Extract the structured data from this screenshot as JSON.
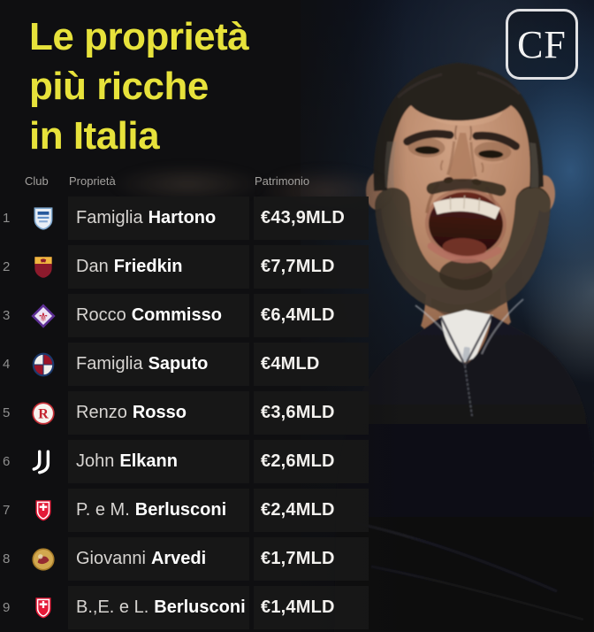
{
  "title": {
    "lines": [
      "Le proprietà",
      "più ricche",
      "in Italia"
    ],
    "color": "#e7e23b"
  },
  "brand": {
    "logo_text": "CF"
  },
  "table": {
    "headers": {
      "club": "Club",
      "owner": "Proprietà",
      "wealth": "Patrimonio"
    },
    "rows": [
      {
        "rank": "1",
        "club_icon": "como-badge-icon",
        "owner_first": "Famiglia",
        "owner_last": "Hartono",
        "wealth": "€43,9MLD"
      },
      {
        "rank": "2",
        "club_icon": "roma-badge-icon",
        "owner_first": "Dan",
        "owner_last": "Friedkin",
        "wealth": "€7,7MLD"
      },
      {
        "rank": "3",
        "club_icon": "fiorentina-badge-icon",
        "owner_first": "Rocco",
        "owner_last": "Commisso",
        "wealth": "€6,4MLD"
      },
      {
        "rank": "4",
        "club_icon": "bologna-badge-icon",
        "owner_first": "Famiglia",
        "owner_last": "Saputo",
        "wealth": "€4MLD"
      },
      {
        "rank": "5",
        "club_icon": "vicenza-badge-icon",
        "owner_first": "Renzo",
        "owner_last": "Rosso",
        "wealth": "€3,6MLD"
      },
      {
        "rank": "6",
        "club_icon": "juventus-badge-icon",
        "owner_first": "John",
        "owner_last": "Elkann",
        "wealth": "€2,6MLD"
      },
      {
        "rank": "7",
        "club_icon": "monza-badge-icon",
        "owner_first": "P. e M.",
        "owner_last": "Berlusconi",
        "wealth": "€2,4MLD"
      },
      {
        "rank": "8",
        "club_icon": "cremonese-badge-icon",
        "owner_first": "Giovanni",
        "owner_last": "Arvedi",
        "wealth": "€1,7MLD"
      },
      {
        "rank": "9",
        "club_icon": "monza-badge-icon",
        "owner_first": "B.,E. e L.",
        "owner_last": "Berlusconi",
        "wealth": "€1,4MLD"
      }
    ]
  },
  "chart_data": {
    "type": "table",
    "title": "Le proprietà più ricche in Italia",
    "columns": [
      "Club",
      "Proprietà",
      "Patrimonio"
    ],
    "rows": [
      {
        "rank": 1,
        "club_icon": "como-badge-icon",
        "proprieta": "Famiglia Hartono",
        "patrimonio_label": "€43,9MLD",
        "patrimonio_mld_eur": 43.9
      },
      {
        "rank": 2,
        "club_icon": "roma-badge-icon",
        "proprieta": "Dan Friedkin",
        "patrimonio_label": "€7,7MLD",
        "patrimonio_mld_eur": 7.7
      },
      {
        "rank": 3,
        "club_icon": "fiorentina-badge-icon",
        "proprieta": "Rocco Commisso",
        "patrimonio_label": "€6,4MLD",
        "patrimonio_mld_eur": 6.4
      },
      {
        "rank": 4,
        "club_icon": "bologna-badge-icon",
        "proprieta": "Famiglia Saputo",
        "patrimonio_label": "€4MLD",
        "patrimonio_mld_eur": 4.0
      },
      {
        "rank": 5,
        "club_icon": "vicenza-badge-icon",
        "proprieta": "Renzo Rosso",
        "patrimonio_label": "€3,6MLD",
        "patrimonio_mld_eur": 3.6
      },
      {
        "rank": 6,
        "club_icon": "juventus-badge-icon",
        "proprieta": "John Elkann",
        "patrimonio_label": "€2,6MLD",
        "patrimonio_mld_eur": 2.6
      },
      {
        "rank": 7,
        "club_icon": "monza-badge-icon",
        "proprieta": "P. e M. Berlusconi",
        "patrimonio_label": "€2,4MLD",
        "patrimonio_mld_eur": 2.4
      },
      {
        "rank": 8,
        "club_icon": "cremonese-badge-icon",
        "proprieta": "Giovanni Arvedi",
        "patrimonio_label": "€1,7MLD",
        "patrimonio_mld_eur": 1.7
      },
      {
        "rank": 9,
        "club_icon": "monza-badge-icon",
        "proprieta": "B.,E. e L. Berlusconi",
        "patrimonio_label": "€1,4MLD",
        "patrimonio_mld_eur": 1.4
      }
    ],
    "legend_position": "none",
    "grid": false
  }
}
